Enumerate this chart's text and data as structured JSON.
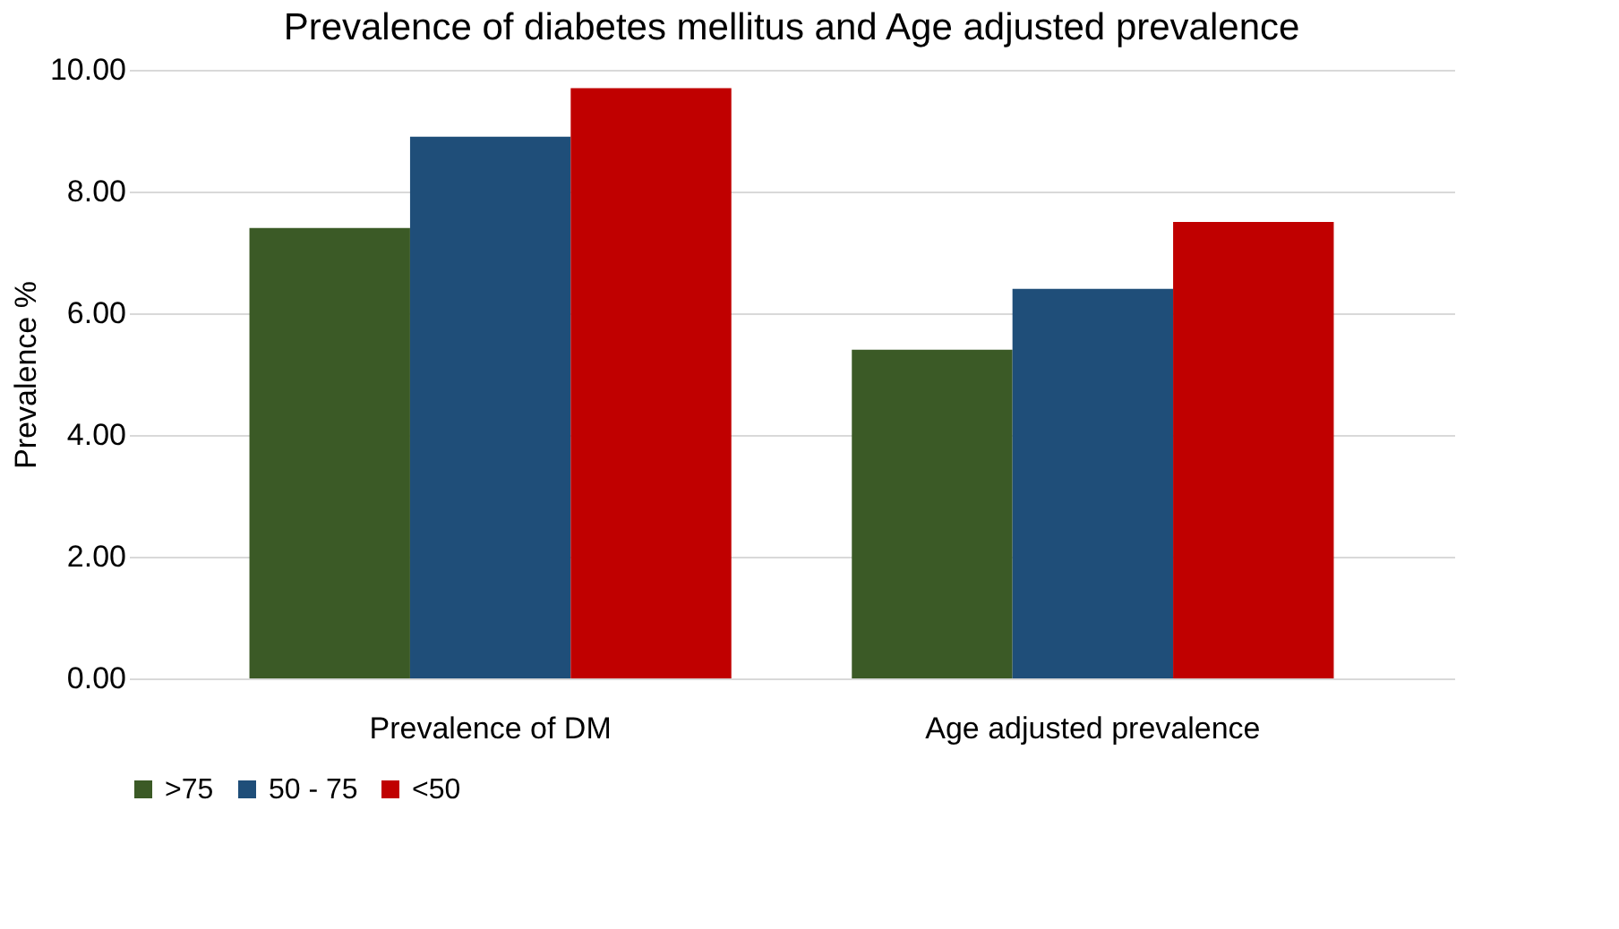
{
  "chart_data": {
    "type": "bar",
    "title": "Prevalence of diabetes mellitus and Age adjusted prevalence",
    "ylabel": "Prevalence %",
    "categories": [
      "Prevalence of DM",
      "Age adjusted prevalence"
    ],
    "series": [
      {
        "name": ">75",
        "color": "#3b5a26",
        "values": [
          7.4,
          5.4
        ]
      },
      {
        "name": "50 - 75",
        "color": "#1f4e79",
        "values": [
          8.9,
          6.4
        ]
      },
      {
        "name": "<50",
        "color": "#c00000",
        "values": [
          9.7,
          7.5
        ]
      }
    ],
    "ylim": [
      0,
      10
    ],
    "yticks": [
      {
        "value": 0,
        "label": "0.00"
      },
      {
        "value": 2,
        "label": "2.00"
      },
      {
        "value": 4,
        "label": "4.00"
      },
      {
        "value": 6,
        "label": "6.00"
      },
      {
        "value": 8,
        "label": "8.00"
      },
      {
        "value": 10,
        "label": "10.00"
      }
    ],
    "grid": "y",
    "legend": "bottom"
  }
}
